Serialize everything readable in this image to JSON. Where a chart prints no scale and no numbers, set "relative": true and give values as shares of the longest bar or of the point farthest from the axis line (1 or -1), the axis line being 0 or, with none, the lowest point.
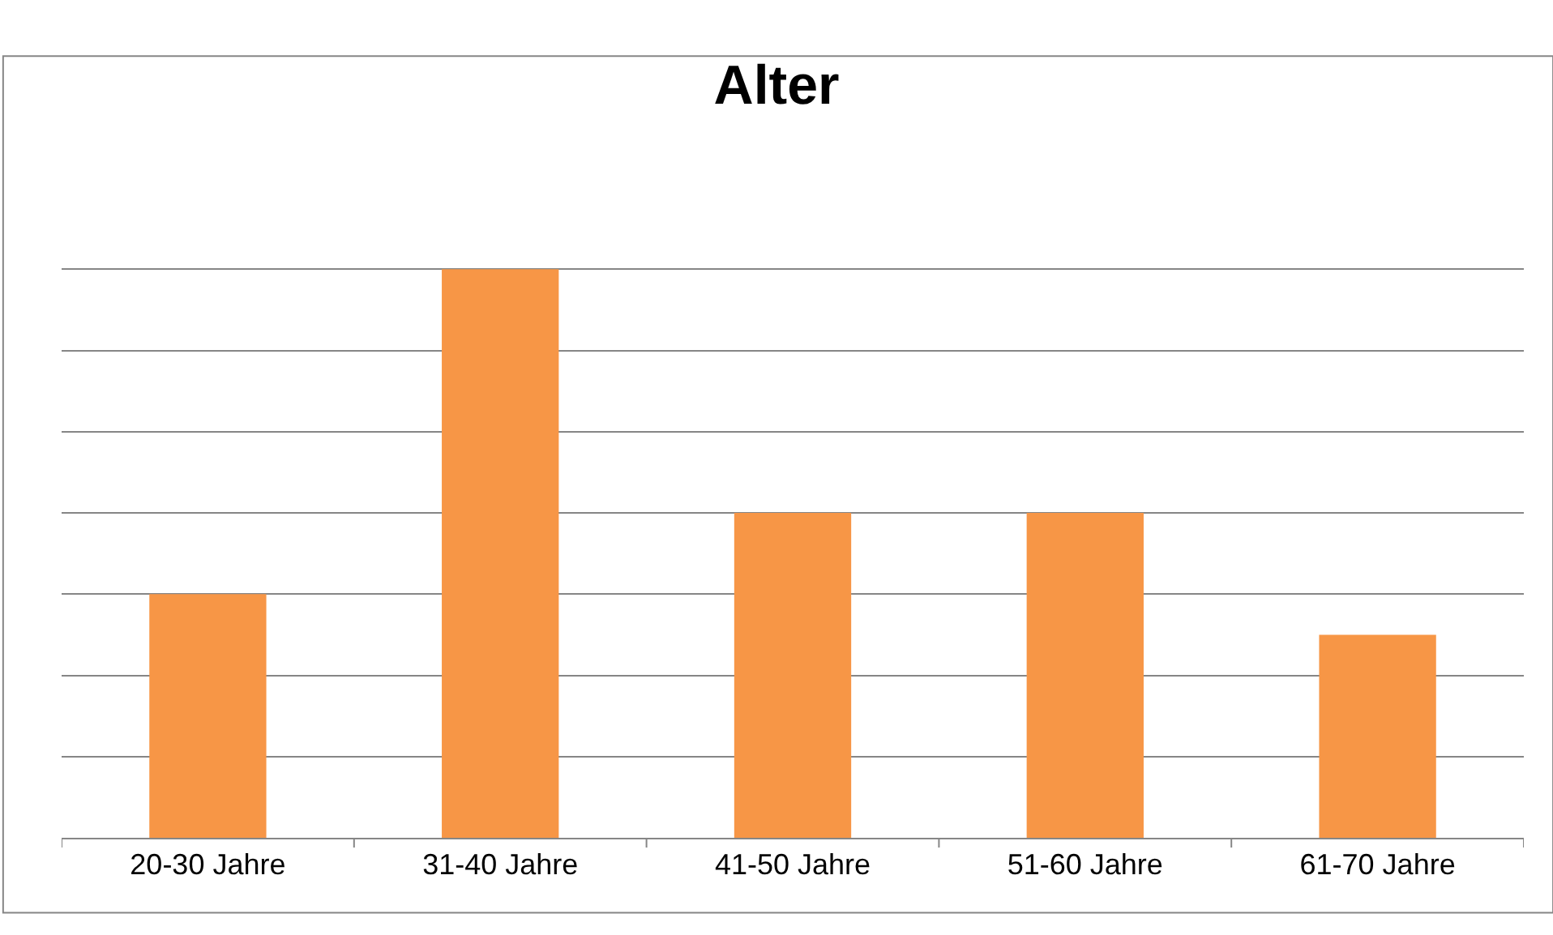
{
  "chart_data": {
    "type": "bar",
    "title": "Alter",
    "categories": [
      "20-30 Jahre",
      "31-40 Jahre",
      "41-50 Jahre",
      "51-60 Jahre",
      "61-70 Jahre"
    ],
    "values": [
      0.4286,
      1,
      0.5714,
      0.5714,
      0.3571
    ],
    "color": "#f79646",
    "relative": true,
    "grid": "y"
  }
}
